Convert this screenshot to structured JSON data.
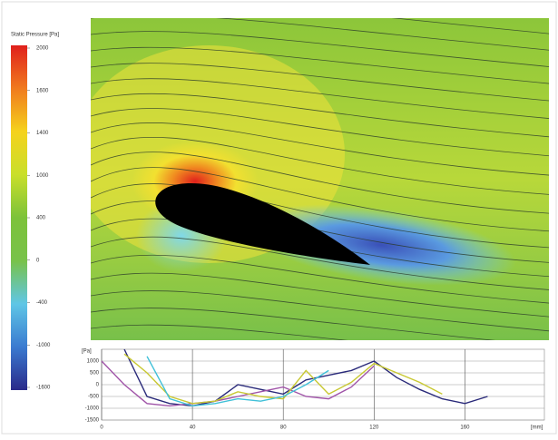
{
  "chart_data": [
    {
      "type": "colorbar",
      "title": "Static Pressure [Pa]",
      "ticks": [
        2000,
        1600,
        1400,
        1000,
        400,
        0,
        -400,
        -1000,
        -1600
      ],
      "colors": [
        "#e0201c",
        "#f07a1e",
        "#f5d21c",
        "#c9df2a",
        "#7cc23a",
        "#78c24a",
        "#5fc6e6",
        "#3a7ad0",
        "#2a2a8a"
      ]
    },
    {
      "type": "line",
      "ylabel": "[Pa]",
      "xlabel": "[mm]",
      "x": [
        0,
        10,
        20,
        30,
        40,
        50,
        60,
        70,
        80,
        90,
        100,
        110,
        120,
        130,
        140,
        150,
        160,
        170
      ],
      "xlim": [
        0,
        195
      ],
      "xticks": [
        0,
        40,
        80,
        120,
        160
      ],
      "ylim": [
        -1500,
        1500
      ],
      "yticks": [
        1000,
        500,
        0,
        -500,
        -1000,
        -1500
      ],
      "grid": true,
      "series": [
        {
          "color": "#2a2a7a",
          "values": [
            null,
            1500,
            -500,
            -800,
            -900,
            -700,
            0,
            -200,
            -400,
            200,
            400,
            600,
            1000,
            300,
            -200,
            -600,
            -800,
            -500
          ]
        },
        {
          "color": "#a054a8",
          "values": [
            1000,
            0,
            -800,
            -900,
            -800,
            -700,
            -500,
            -300,
            -100,
            -500,
            -600,
            -100,
            800,
            null,
            null,
            null,
            null,
            null
          ]
        },
        {
          "color": "#c8c832",
          "values": [
            null,
            1300,
            500,
            -500,
            -800,
            -700,
            -300,
            -500,
            -600,
            600,
            -400,
            100,
            900,
            500,
            100,
            -400,
            null,
            null
          ]
        },
        {
          "color": "#40c0d8",
          "values": [
            null,
            null,
            1200,
            -600,
            -900,
            -800,
            -600,
            -700,
            -500,
            0,
            600,
            null,
            null,
            null,
            null,
            null,
            null,
            null
          ]
        }
      ]
    }
  ]
}
